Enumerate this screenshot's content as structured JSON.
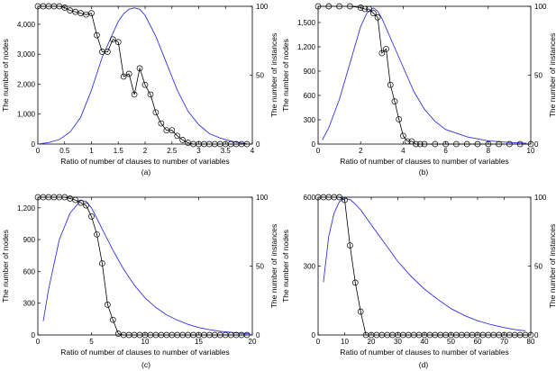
{
  "colors": {
    "nodes": "#3333dd",
    "instances": "#000000"
  },
  "chart_data": [
    {
      "type": "line",
      "subplot_label": "(a)",
      "xlabel": "Ratio of number of clauses to number of variables",
      "ylabel_left": "The number of nodes",
      "ylabel_right": "The number of instances",
      "xlim": [
        0,
        4
      ],
      "ylim_left": [
        0,
        4600
      ],
      "ylim_right": [
        0,
        100
      ],
      "xticks": [
        0,
        0.5,
        1,
        1.5,
        2,
        2.5,
        3,
        3.5,
        4
      ],
      "xtick_labels": [
        "0",
        "0.5",
        "1",
        "1.5",
        "2",
        "2.5",
        "3",
        "3.5",
        "4"
      ],
      "yticks_left": [
        0,
        1000,
        2000,
        3000,
        4000
      ],
      "ytick_labels_left": [
        "0",
        "1,000",
        "2,000",
        "3,000",
        "4,000"
      ],
      "yticks_right": [
        0,
        50,
        100
      ],
      "ytick_labels_right": [
        "0",
        "50",
        "100"
      ],
      "series": [
        {
          "axis": "left",
          "color": "#3333dd",
          "marker": "none",
          "x": [
            0,
            0.2,
            0.4,
            0.6,
            0.8,
            1.0,
            1.2,
            1.4,
            1.5,
            1.6,
            1.7,
            1.8,
            1.9,
            2.0,
            2.2,
            2.4,
            2.6,
            2.8,
            3.0,
            3.2,
            3.4,
            3.6,
            3.8,
            3.9
          ],
          "y": [
            0,
            50,
            150,
            400,
            900,
            1800,
            2900,
            3700,
            4100,
            4350,
            4500,
            4550,
            4500,
            4300,
            3600,
            2700,
            1800,
            1100,
            650,
            350,
            200,
            100,
            30,
            10
          ]
        },
        {
          "axis": "right",
          "color": "#000000",
          "marker": "circle",
          "x": [
            0,
            0.1,
            0.2,
            0.3,
            0.4,
            0.5,
            0.6,
            0.7,
            0.8,
            0.9,
            1.0,
            1.1,
            1.2,
            1.3,
            1.4,
            1.5,
            1.6,
            1.7,
            1.8,
            1.9,
            2.0,
            2.1,
            2.2,
            2.3,
            2.4,
            2.5,
            2.6,
            2.7,
            2.8,
            2.9,
            3.0,
            3.1,
            3.2,
            3.3,
            3.4,
            3.5,
            3.6,
            3.7,
            3.8,
            3.9
          ],
          "y": [
            100,
            100,
            100,
            100,
            100,
            99,
            97,
            96,
            95,
            94,
            95,
            79,
            67,
            67,
            76,
            74,
            49,
            51,
            36,
            55,
            43,
            36,
            23,
            15,
            10,
            10,
            6,
            3,
            1,
            0,
            0,
            0,
            0,
            0,
            0,
            0,
            0,
            0,
            0,
            0
          ]
        }
      ]
    },
    {
      "type": "line",
      "subplot_label": "(b)",
      "xlabel": "Ratio of number of clauses to number of variables",
      "ylabel_left": "The number of nodes",
      "ylabel_right": "The number of instances",
      "xlim": [
        0,
        10
      ],
      "ylim_left": [
        0,
        1700
      ],
      "ylim_right": [
        0,
        100
      ],
      "xticks": [
        0,
        2,
        4,
        6,
        8,
        10
      ],
      "xtick_labels": [
        "0",
        "2",
        "4",
        "6",
        "8",
        "10"
      ],
      "yticks_left": [
        0,
        300,
        600,
        900,
        1200,
        1500
      ],
      "ytick_labels_left": [
        "0",
        "300",
        "600",
        "900",
        "1,200",
        "1,500"
      ],
      "yticks_right": [
        0,
        50,
        100
      ],
      "ytick_labels_right": [
        "0",
        "50",
        "100"
      ],
      "series": [
        {
          "axis": "left",
          "color": "#3333dd",
          "marker": "none",
          "x": [
            0.2,
            0.5,
            1.0,
            1.5,
            2.0,
            2.3,
            2.6,
            2.8,
            3.0,
            3.5,
            4.0,
            4.5,
            5.0,
            5.5,
            6.0,
            7.0,
            8.0,
            9.0,
            9.8
          ],
          "y": [
            50,
            200,
            550,
            1000,
            1450,
            1620,
            1680,
            1640,
            1550,
            1250,
            950,
            650,
            430,
            280,
            180,
            90,
            40,
            20,
            10
          ]
        },
        {
          "axis": "right",
          "color": "#000000",
          "marker": "circle",
          "x": [
            0,
            0.5,
            1.0,
            1.5,
            2.0,
            2.2,
            2.4,
            2.6,
            2.8,
            3.0,
            3.2,
            3.4,
            3.6,
            3.8,
            4.0,
            4.2,
            4.4,
            4.6,
            4.8,
            5.0,
            5.5,
            6.0,
            6.5,
            7.0,
            7.5,
            8.0,
            8.5,
            9.0,
            9.5,
            10.0
          ],
          "y": [
            100,
            100,
            100,
            100,
            99,
            98,
            98,
            95,
            92,
            66,
            69,
            43,
            31,
            18,
            6,
            2,
            2,
            0,
            0,
            0,
            0,
            0,
            0,
            0,
            0,
            0,
            0,
            0,
            0,
            0
          ]
        }
      ]
    },
    {
      "type": "line",
      "subplot_label": "(c)",
      "xlabel": "Ratio of number of clauses to number of variables",
      "ylabel_left": "The number of nodes",
      "ylabel_right": "The number of instances",
      "xlim": [
        0,
        20
      ],
      "ylim_left": [
        0,
        1300
      ],
      "ylim_right": [
        0,
        100
      ],
      "xticks": [
        0,
        5,
        10,
        15,
        20
      ],
      "xtick_labels": [
        "0",
        "5",
        "10",
        "15",
        "20"
      ],
      "yticks_left": [
        0,
        300,
        600,
        900,
        1200
      ],
      "ytick_labels_left": [
        "0",
        "300",
        "600",
        "900",
        "1,200"
      ],
      "yticks_right": [
        0,
        50,
        100
      ],
      "ytick_labels_right": [
        "0",
        "50",
        "100"
      ],
      "series": [
        {
          "axis": "left",
          "color": "#3333dd",
          "marker": "none",
          "x": [
            0.5,
            1,
            2,
            3,
            4,
            4.5,
            5,
            5.5,
            6,
            7,
            8,
            9,
            10,
            11,
            12,
            13,
            14,
            15,
            16,
            17,
            18,
            19,
            19.8
          ],
          "y": [
            130,
            430,
            900,
            1150,
            1270,
            1260,
            1200,
            1100,
            1000,
            800,
            620,
            470,
            350,
            260,
            190,
            140,
            100,
            70,
            50,
            35,
            25,
            15,
            10
          ]
        },
        {
          "axis": "right",
          "color": "#000000",
          "marker": "circle",
          "x": [
            0,
            0.5,
            1,
            1.5,
            2,
            2.5,
            3,
            3.5,
            4,
            4.5,
            5,
            5.5,
            6,
            6.5,
            7,
            7.5,
            8,
            8.5,
            9,
            9.5,
            10,
            10.5,
            11,
            11.5,
            12,
            12.5,
            13,
            13.5,
            14,
            14.5,
            15,
            15.5,
            16,
            16.5,
            17,
            17.5,
            18,
            18.5,
            19,
            19.5
          ],
          "y": [
            100,
            100,
            100,
            100,
            100,
            100,
            99,
            98,
            96,
            94,
            86,
            73,
            52,
            22,
            11,
            1,
            0,
            0,
            0,
            0,
            0,
            0,
            0,
            0,
            0,
            0,
            0,
            0,
            0,
            0,
            0,
            0,
            0,
            0,
            0,
            0,
            0,
            0,
            0,
            0
          ]
        }
      ]
    },
    {
      "type": "line",
      "subplot_label": "(d)",
      "xlabel": "Ratio of number of clauses to number of variables",
      "ylabel_left": "The number of nodes",
      "ylabel_right": "The number of instances",
      "xlim": [
        0,
        80
      ],
      "ylim_left": [
        0,
        600
      ],
      "ylim_right": [
        0,
        100
      ],
      "xticks": [
        0,
        10,
        20,
        30,
        40,
        50,
        60,
        70,
        80
      ],
      "xtick_labels": [
        "0",
        "10",
        "20",
        "30",
        "40",
        "50",
        "60",
        "70",
        "80"
      ],
      "yticks_left": [
        0,
        300,
        600
      ],
      "ytick_labels_left": [
        "0",
        "300",
        "600"
      ],
      "yticks_right": [
        0,
        50,
        100
      ],
      "ytick_labels_right": [
        "0",
        "50",
        "100"
      ],
      "series": [
        {
          "axis": "left",
          "color": "#3333dd",
          "marker": "none",
          "x": [
            2,
            4,
            6,
            8,
            10,
            12,
            14,
            16,
            20,
            25,
            30,
            35,
            40,
            45,
            50,
            55,
            60,
            65,
            70,
            75,
            78
          ],
          "y": [
            230,
            430,
            530,
            580,
            595,
            590,
            570,
            545,
            480,
            400,
            320,
            255,
            200,
            155,
            115,
            85,
            62,
            45,
            32,
            22,
            18
          ]
        },
        {
          "axis": "right",
          "color": "#000000",
          "marker": "circle",
          "x": [
            0,
            2,
            4,
            6,
            8,
            10,
            12,
            14,
            16,
            18,
            20,
            22,
            24,
            26,
            28,
            30,
            32,
            34,
            36,
            38,
            40,
            42,
            44,
            46,
            48,
            50,
            52,
            54,
            56,
            58,
            60,
            62,
            64,
            66,
            68,
            70,
            72,
            74,
            76,
            78,
            80
          ],
          "y": [
            100,
            100,
            100,
            100,
            100,
            98,
            65,
            38,
            17,
            0,
            0,
            0,
            0,
            0,
            0,
            0,
            0,
            0,
            0,
            0,
            0,
            0,
            0,
            0,
            0,
            0,
            0,
            0,
            0,
            0,
            0,
            0,
            0,
            0,
            0,
            0,
            0,
            0,
            0,
            0,
            0
          ]
        }
      ]
    }
  ]
}
